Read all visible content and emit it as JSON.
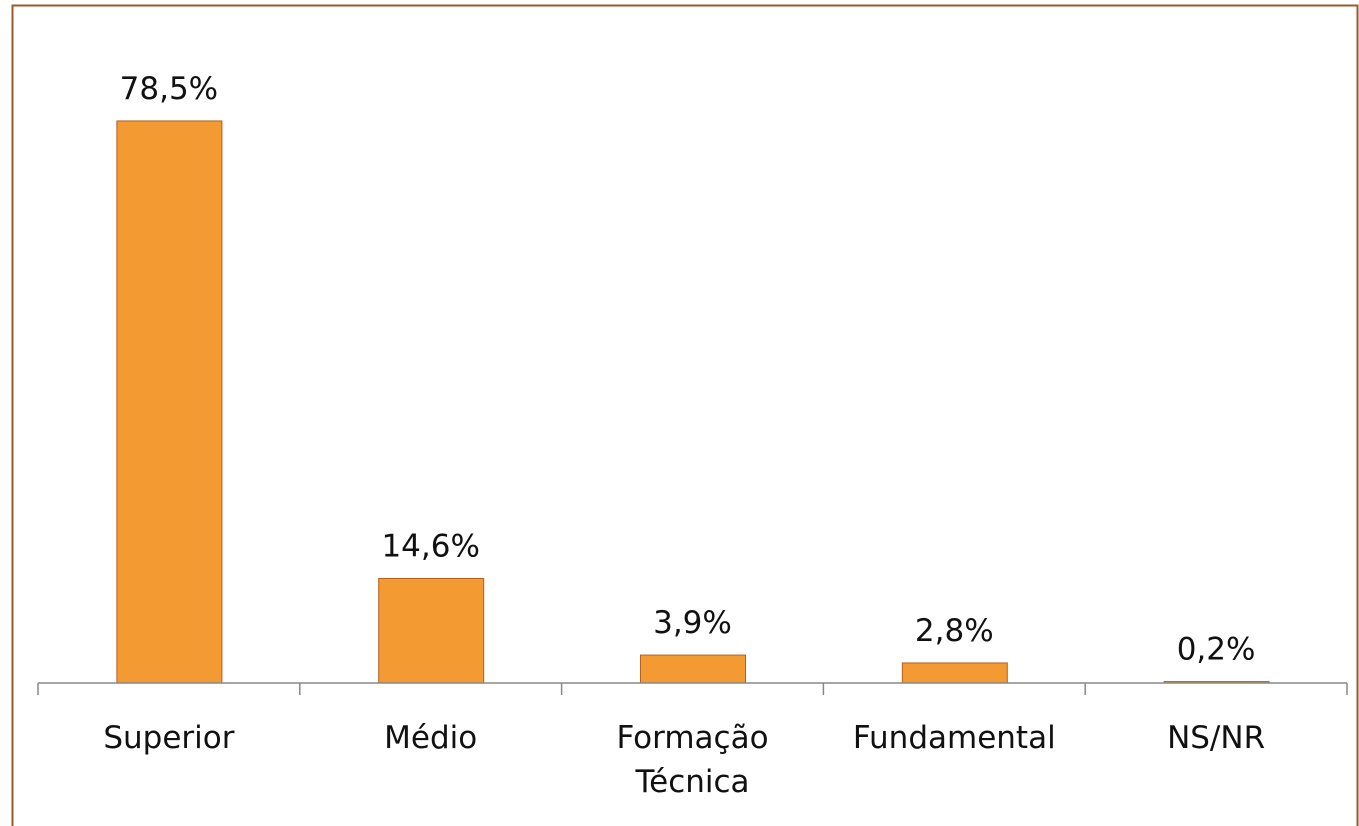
{
  "chart_data": {
    "type": "bar",
    "categories": [
      "Superior",
      "Médio",
      "Formação Técnica",
      "Fundamental",
      "NS/NR"
    ],
    "values": [
      78.5,
      14.6,
      3.9,
      2.8,
      0.2
    ],
    "value_labels": [
      "78,5%",
      "14,6%",
      "3,9%",
      "2,8%",
      "0,2%"
    ],
    "color": "#f39a33"
  }
}
